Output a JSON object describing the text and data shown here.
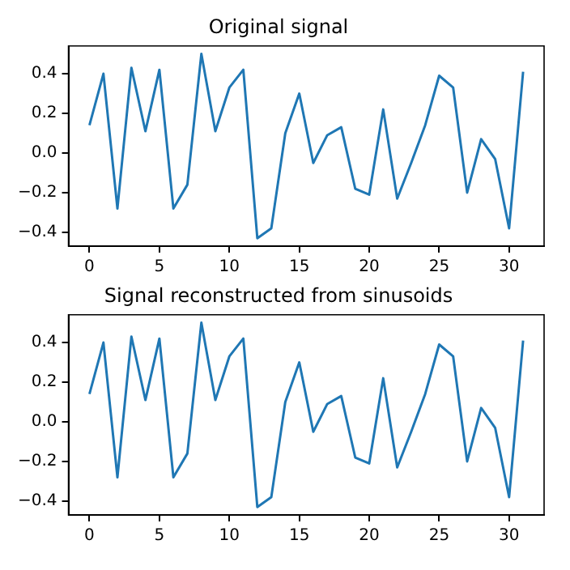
{
  "chart_data": [
    {
      "type": "line",
      "title": "Original signal",
      "x": [
        0,
        1,
        2,
        3,
        4,
        5,
        6,
        7,
        8,
        9,
        10,
        11,
        12,
        13,
        14,
        15,
        16,
        17,
        18,
        19,
        20,
        21,
        22,
        23,
        24,
        25,
        26,
        27,
        28,
        29,
        30,
        31
      ],
      "series": [
        {
          "color": "#1f77b4",
          "values": [
            0.14,
            0.4,
            -0.28,
            0.43,
            0.11,
            0.42,
            -0.28,
            -0.16,
            0.5,
            0.11,
            0.33,
            0.42,
            -0.43,
            -0.38,
            0.1,
            0.3,
            -0.05,
            0.09,
            0.13,
            -0.18,
            -0.21,
            0.22,
            -0.23,
            -0.05,
            0.14,
            0.39,
            0.33,
            -0.2,
            0.07,
            -0.03,
            -0.38,
            0.41
          ]
        }
      ],
      "xlim": [
        -1.5,
        32.5
      ],
      "xticks": [
        0,
        5,
        10,
        15,
        20,
        25,
        30
      ],
      "ylim": [
        -0.47,
        0.54
      ],
      "yticks": [
        {
          "value": -0.4,
          "label": "−0.4"
        },
        {
          "value": -0.2,
          "label": "−0.2"
        },
        {
          "value": 0,
          "label": "0.0"
        },
        {
          "value": 0.2,
          "label": "0.2"
        },
        {
          "value": 0.4,
          "label": "0.4"
        }
      ],
      "grid": false,
      "legend": false,
      "marker": "none",
      "line_style": "solid"
    },
    {
      "type": "line",
      "title": "Signal reconstructed from sinusoids",
      "x": [
        0,
        1,
        2,
        3,
        4,
        5,
        6,
        7,
        8,
        9,
        10,
        11,
        12,
        13,
        14,
        15,
        16,
        17,
        18,
        19,
        20,
        21,
        22,
        23,
        24,
        25,
        26,
        27,
        28,
        29,
        30,
        31
      ],
      "series": [
        {
          "color": "#1f77b4",
          "values": [
            0.14,
            0.4,
            -0.28,
            0.43,
            0.11,
            0.42,
            -0.28,
            -0.16,
            0.5,
            0.11,
            0.33,
            0.42,
            -0.43,
            -0.38,
            0.1,
            0.3,
            -0.05,
            0.09,
            0.13,
            -0.18,
            -0.21,
            0.22,
            -0.23,
            -0.05,
            0.14,
            0.39,
            0.33,
            -0.2,
            0.07,
            -0.03,
            -0.38,
            0.41
          ]
        }
      ],
      "xlim": [
        -1.5,
        32.5
      ],
      "xticks": [
        0,
        5,
        10,
        15,
        20,
        25,
        30
      ],
      "ylim": [
        -0.47,
        0.54
      ],
      "yticks": [
        {
          "value": -0.4,
          "label": "−0.4"
        },
        {
          "value": -0.2,
          "label": "−0.2"
        },
        {
          "value": 0,
          "label": "0.0"
        },
        {
          "value": 0.2,
          "label": "0.2"
        },
        {
          "value": 0.4,
          "label": "0.4"
        }
      ],
      "grid": false,
      "legend": false,
      "marker": "none",
      "line_style": "solid"
    }
  ]
}
